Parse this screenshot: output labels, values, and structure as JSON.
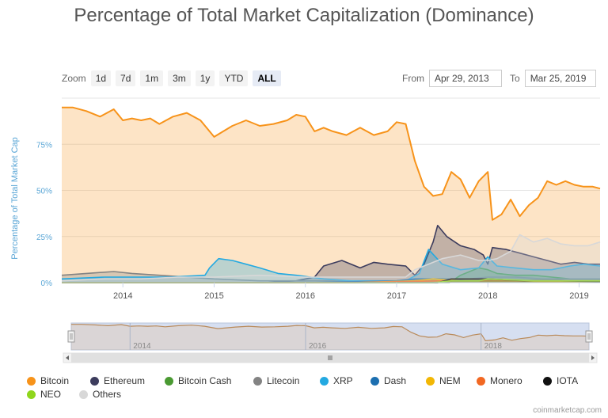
{
  "title": "Percentage of Total Market Capitalization (Dominance)",
  "zoom": {
    "label": "Zoom",
    "buttons": [
      "1d",
      "7d",
      "1m",
      "3m",
      "1y",
      "YTD",
      "ALL"
    ],
    "active": "ALL"
  },
  "range": {
    "from_label": "From",
    "from_value": "Apr 29, 2013",
    "to_label": "To",
    "to_value": "Mar 25, 2019"
  },
  "credit": "coinmarketcap.com",
  "chart_data": {
    "type": "area",
    "title": "Percentage of Total Market Capitalization (Dominance)",
    "ylabel": "Percentage of Total Market Cap",
    "ylim": [
      0,
      100
    ],
    "yticks": [
      "0%",
      "25%",
      "50%",
      "75%"
    ],
    "xlim": [
      2013.33,
      2019.23
    ],
    "xticks": [
      "2014",
      "2015",
      "2016",
      "2017",
      "2018",
      "2019"
    ],
    "grid": true,
    "legend_position": "bottom",
    "navigator_ticks": [
      "2014",
      "2016",
      "2018"
    ],
    "series": [
      {
        "name": "Bitcoin",
        "color": "#f7931a",
        "x": [
          2013.33,
          2013.45,
          2013.6,
          2013.75,
          2013.9,
          2014.0,
          2014.1,
          2014.2,
          2014.3,
          2014.4,
          2014.55,
          2014.7,
          2014.85,
          2014.95,
          2015.0,
          2015.1,
          2015.2,
          2015.35,
          2015.5,
          2015.65,
          2015.8,
          2015.9,
          2016.0,
          2016.1,
          2016.2,
          2016.3,
          2016.45,
          2016.6,
          2016.75,
          2016.9,
          2017.0,
          2017.1,
          2017.2,
          2017.3,
          2017.4,
          2017.5,
          2017.6,
          2017.7,
          2017.8,
          2017.9,
          2018.0,
          2018.05,
          2018.15,
          2018.25,
          2018.35,
          2018.45,
          2018.55,
          2018.65,
          2018.75,
          2018.85,
          2018.95,
          2019.05,
          2019.15,
          2019.23
        ],
        "values": [
          95,
          95,
          93,
          90,
          94,
          88,
          89,
          88,
          89,
          86,
          90,
          92,
          88,
          82,
          79,
          82,
          85,
          88,
          85,
          86,
          88,
          91,
          90,
          82,
          84,
          82,
          80,
          84,
          80,
          82,
          87,
          86,
          66,
          52,
          47,
          48,
          60,
          56,
          46,
          55,
          60,
          34,
          37,
          45,
          36,
          42,
          46,
          55,
          53,
          55,
          53,
          52,
          52,
          51
        ]
      },
      {
        "name": "Ethereum",
        "color": "#3c3c5d",
        "x": [
          2013.33,
          2015.55,
          2015.9,
          2016.1,
          2016.2,
          2016.4,
          2016.6,
          2016.75,
          2016.9,
          2017.1,
          2017.2,
          2017.3,
          2017.4,
          2017.45,
          2017.55,
          2017.7,
          2017.85,
          2017.95,
          2018.0,
          2018.05,
          2018.2,
          2018.35,
          2018.5,
          2018.65,
          2018.8,
          2018.95,
          2019.1,
          2019.23
        ],
        "values": [
          0,
          0,
          1,
          3,
          9,
          12,
          8,
          11,
          10,
          9,
          4,
          10,
          22,
          31,
          25,
          20,
          18,
          15,
          10,
          19,
          18,
          16,
          14,
          12,
          10,
          11,
          10,
          10
        ]
      },
      {
        "name": "Bitcoin Cash",
        "color": "#4a9a32",
        "x": [
          2013.33,
          2017.58,
          2017.7,
          2017.8,
          2017.9,
          2018.0,
          2018.1,
          2018.3,
          2018.5,
          2018.7,
          2018.9,
          2019.23
        ],
        "values": [
          0,
          0,
          4,
          6,
          8,
          7,
          5,
          4,
          4,
          3,
          2,
          2
        ]
      },
      {
        "name": "Litecoin",
        "color": "#838383",
        "x": [
          2013.33,
          2013.6,
          2013.9,
          2014.1,
          2014.4,
          2014.7,
          2015.0,
          2015.5,
          2016.0,
          2016.5,
          2017.0,
          2017.3,
          2017.5,
          2017.8,
          2018.0,
          2018.3,
          2018.6,
          2018.9,
          2019.23
        ],
        "values": [
          4,
          5,
          6,
          5,
          4,
          3,
          2,
          1,
          1,
          1,
          1,
          2,
          2,
          2,
          3,
          3,
          2,
          2,
          2
        ]
      },
      {
        "name": "XRP",
        "color": "#23a9e1",
        "x": [
          2013.33,
          2013.8,
          2014.2,
          2014.5,
          2014.9,
          2014.95,
          2015.05,
          2015.2,
          2015.35,
          2015.5,
          2015.7,
          2015.9,
          2016.2,
          2016.5,
          2016.8,
          2017.1,
          2017.25,
          2017.35,
          2017.5,
          2017.7,
          2017.9,
          2018.0,
          2018.1,
          2018.3,
          2018.5,
          2018.7,
          2018.9,
          2019.05,
          2019.23
        ],
        "values": [
          2,
          3,
          3,
          3,
          4,
          8,
          13,
          12,
          10,
          8,
          5,
          4,
          2,
          1,
          1,
          1,
          5,
          18,
          10,
          7,
          8,
          14,
          9,
          8,
          7,
          7,
          9,
          10,
          9
        ]
      },
      {
        "name": "Dash",
        "color": "#1c6fb0",
        "x": [
          2013.33,
          2015.0,
          2016.0,
          2017.0,
          2017.2,
          2017.5,
          2017.8,
          2018.0,
          2018.5,
          2019.23
        ],
        "values": [
          0,
          0,
          0,
          1,
          2,
          2,
          1,
          1,
          1,
          1
        ]
      },
      {
        "name": "NEM",
        "color": "#f2b705",
        "x": [
          2013.33,
          2016.5,
          2017.2,
          2017.4,
          2017.7,
          2018.0,
          2018.3,
          2018.6,
          2019.23
        ],
        "values": [
          0,
          0,
          1,
          2,
          1,
          1,
          1,
          0.5,
          0.5
        ]
      },
      {
        "name": "Monero",
        "color": "#f26822",
        "x": [
          2013.33,
          2016.5,
          2017.0,
          2017.5,
          2018.0,
          2018.5,
          2019.23
        ],
        "values": [
          0,
          0,
          0.5,
          1,
          1,
          1,
          1
        ]
      },
      {
        "name": "IOTA",
        "color": "#111111",
        "x": [
          2013.33,
          2017.45,
          2017.6,
          2017.9,
          2018.0,
          2018.4,
          2018.8,
          2019.23
        ],
        "values": [
          0,
          0,
          2,
          2,
          2,
          1,
          1,
          0.5
        ]
      },
      {
        "name": "NEO",
        "color": "#8fd61c",
        "x": [
          2013.33,
          2017.4,
          2017.6,
          2017.9,
          2018.0,
          2018.5,
          2019.23
        ],
        "values": [
          0,
          0,
          1,
          1,
          2,
          1,
          1
        ]
      },
      {
        "name": "Others",
        "color": "#d8d8d8",
        "x": [
          2013.33,
          2013.8,
          2014.2,
          2014.6,
          2015.0,
          2015.5,
          2016.0,
          2016.5,
          2016.9,
          2017.1,
          2017.2,
          2017.3,
          2017.5,
          2017.7,
          2017.9,
          2018.0,
          2018.1,
          2018.25,
          2018.35,
          2018.5,
          2018.65,
          2018.8,
          2018.95,
          2019.1,
          2019.23
        ],
        "values": [
          1,
          2,
          2,
          3,
          3,
          4,
          3,
          3,
          3,
          3,
          7,
          9,
          13,
          15,
          12,
          12,
          13,
          17,
          26,
          22,
          24,
          21,
          20,
          20,
          22
        ]
      }
    ]
  }
}
